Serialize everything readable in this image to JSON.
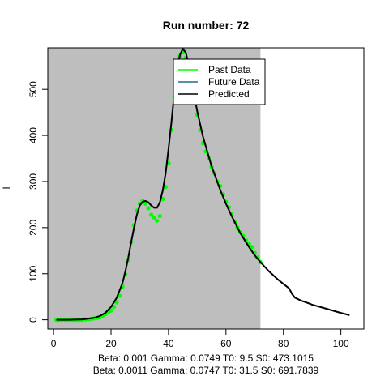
{
  "chart_data": {
    "type": "line",
    "title": "Run number:  72",
    "xlabel": "",
    "ylabel": "I",
    "xlim": [
      -2,
      108
    ],
    "ylim": [
      -20,
      590
    ],
    "x_ticks": [
      0,
      20,
      40,
      60,
      80,
      100
    ],
    "y_ticks": [
      0,
      100,
      200,
      300,
      400,
      500
    ],
    "shaded_region": {
      "x_from": -2,
      "x_to": 72,
      "color": "#bebebe"
    },
    "legend_position": "top-right",
    "legend": [
      {
        "label": "Past Data",
        "color": "#00ff00"
      },
      {
        "label": "Future Data",
        "color": "#1e6e8c"
      },
      {
        "label": "Predicted",
        "color": "#000000"
      }
    ],
    "past_data": {
      "name": "Past Data",
      "color": "#00ff00",
      "x": [
        1,
        2,
        3,
        4,
        5,
        6,
        7,
        8,
        9,
        10,
        11,
        12,
        13,
        14,
        15,
        16,
        17,
        18,
        19,
        20,
        21,
        22,
        23,
        24,
        25,
        26,
        27,
        28,
        29,
        30,
        31,
        32,
        33,
        34,
        35,
        36,
        37,
        38,
        39,
        40,
        41,
        42,
        43,
        44,
        45,
        46,
        47,
        48,
        49,
        50,
        51,
        52,
        53,
        54,
        55,
        56,
        57,
        58,
        59,
        60,
        61,
        62,
        63,
        64,
        65,
        66,
        67,
        68,
        69,
        70,
        71,
        72
      ],
      "y": [
        0,
        0,
        0,
        0,
        0,
        0,
        0,
        0,
        0,
        0,
        1,
        1,
        2,
        3,
        4,
        5,
        8,
        12,
        16,
        20,
        28,
        38,
        52,
        72,
        98,
        130,
        168,
        205,
        237,
        252,
        258,
        252,
        242,
        228,
        222,
        215,
        225,
        262,
        288,
        340,
        412,
        485,
        545,
        572,
        580,
        568,
        545,
        512,
        480,
        445,
        412,
        383,
        365,
        350,
        332,
        318,
        300,
        290,
        272,
        256,
        244,
        230,
        212,
        200,
        190,
        182,
        172,
        165,
        158,
        145,
        135,
        125
      ]
    },
    "predicted": {
      "name": "Predicted",
      "color": "#000000",
      "x": [
        1,
        5,
        10,
        14,
        16,
        18,
        20,
        22,
        24,
        25,
        26,
        27,
        28,
        29,
        30,
        31,
        32,
        33,
        34,
        35,
        36,
        37,
        38,
        39,
        40,
        41,
        42,
        43,
        44,
        45,
        46,
        47,
        48,
        50,
        52,
        55,
        58,
        60,
        62,
        65,
        68,
        70,
        72,
        75,
        78,
        80,
        82,
        83,
        84,
        86,
        90,
        95,
        100,
        103
      ],
      "y": [
        0,
        0,
        1,
        4,
        8,
        15,
        28,
        48,
        80,
        105,
        135,
        168,
        200,
        228,
        248,
        256,
        258,
        255,
        248,
        243,
        243,
        255,
        280,
        318,
        370,
        428,
        490,
        545,
        575,
        588,
        580,
        555,
        520,
        452,
        397,
        333,
        282,
        252,
        225,
        188,
        158,
        140,
        125,
        105,
        88,
        78,
        68,
        56,
        48,
        42,
        33,
        24,
        15,
        10
      ]
    },
    "annotations": [
      "Beta:  0.001 Gamma:  0.0749 T0:  9.5 S0:  473.1015",
      "Beta:  0.0011 Gamma:  0.0747 T0:  31.5 S0:  691.7839"
    ]
  }
}
